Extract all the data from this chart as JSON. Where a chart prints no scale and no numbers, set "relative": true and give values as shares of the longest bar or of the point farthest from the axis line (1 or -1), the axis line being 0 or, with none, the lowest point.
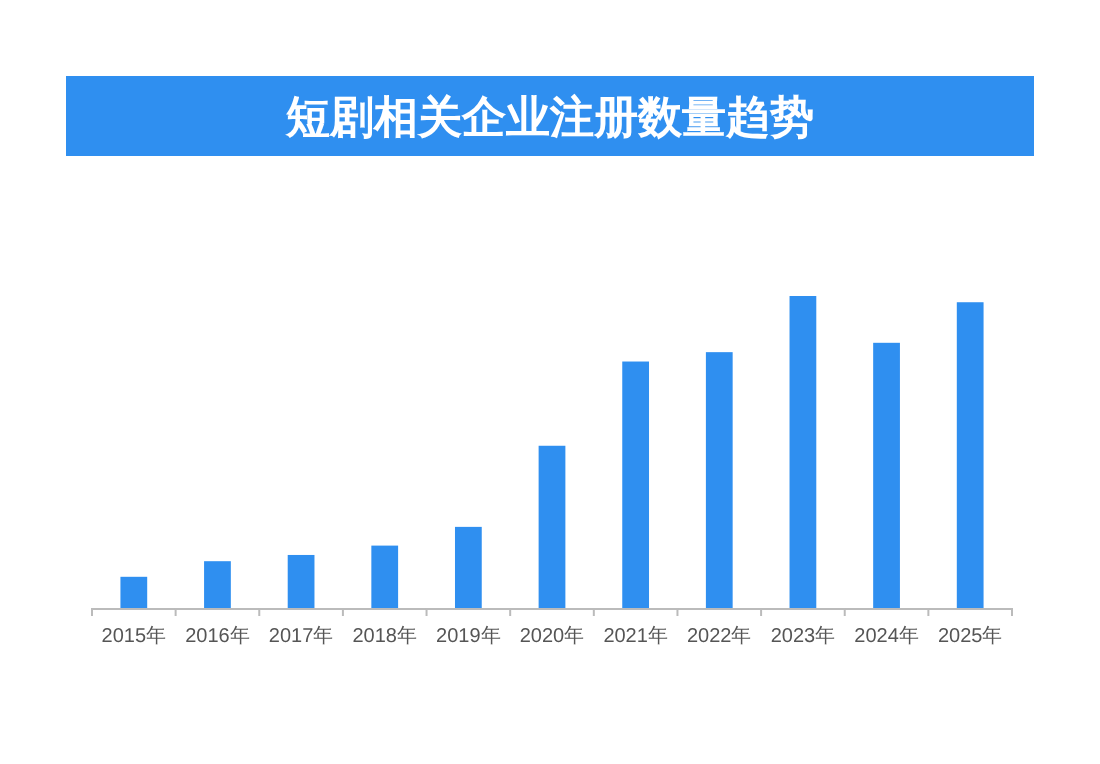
{
  "chart_data": {
    "type": "bar",
    "title": "短剧相关企业注册数量趋势",
    "relative": true,
    "color": "#2f8ff0",
    "categories": [
      "2015年",
      "2016年",
      "2017年",
      "2018年",
      "2019年",
      "2020年",
      "2021年",
      "2022年",
      "2023年",
      "2024年",
      "2025年"
    ],
    "values": [
      0.1,
      0.15,
      0.17,
      0.2,
      0.26,
      0.52,
      0.79,
      0.82,
      1,
      0.85,
      0.98
    ]
  }
}
